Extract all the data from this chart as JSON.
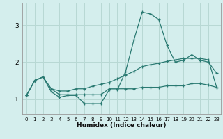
{
  "xlabel": "Humidex (Indice chaleur)",
  "bg_color": "#d4eeed",
  "grid_color": "#b8d8d4",
  "line_color": "#2a7a72",
  "x_values": [
    0,
    1,
    2,
    3,
    4,
    5,
    6,
    7,
    8,
    9,
    10,
    11,
    12,
    13,
    14,
    15,
    16,
    17,
    18,
    19,
    20,
    21,
    22,
    23
  ],
  "line_max": [
    1.1,
    1.5,
    1.6,
    1.2,
    1.05,
    1.1,
    1.1,
    0.88,
    0.88,
    0.88,
    1.25,
    1.25,
    1.75,
    2.6,
    3.35,
    3.3,
    3.15,
    2.45,
    2.0,
    2.05,
    2.2,
    2.05,
    2.0,
    1.7
  ],
  "line_mean": [
    1.1,
    1.5,
    1.6,
    1.28,
    1.22,
    1.22,
    1.28,
    1.28,
    1.35,
    1.4,
    1.45,
    1.55,
    1.65,
    1.75,
    1.88,
    1.93,
    1.97,
    2.02,
    2.06,
    2.1,
    2.1,
    2.1,
    2.06,
    1.32
  ],
  "line_min": [
    1.1,
    1.5,
    1.6,
    1.28,
    1.12,
    1.12,
    1.12,
    1.12,
    1.12,
    1.12,
    1.28,
    1.28,
    1.28,
    1.28,
    1.32,
    1.32,
    1.32,
    1.36,
    1.36,
    1.36,
    1.42,
    1.42,
    1.38,
    1.32
  ],
  "ylim": [
    0.6,
    3.6
  ],
  "yticks": [
    1,
    2,
    3
  ],
  "xlim": [
    -0.5,
    23.5
  ]
}
